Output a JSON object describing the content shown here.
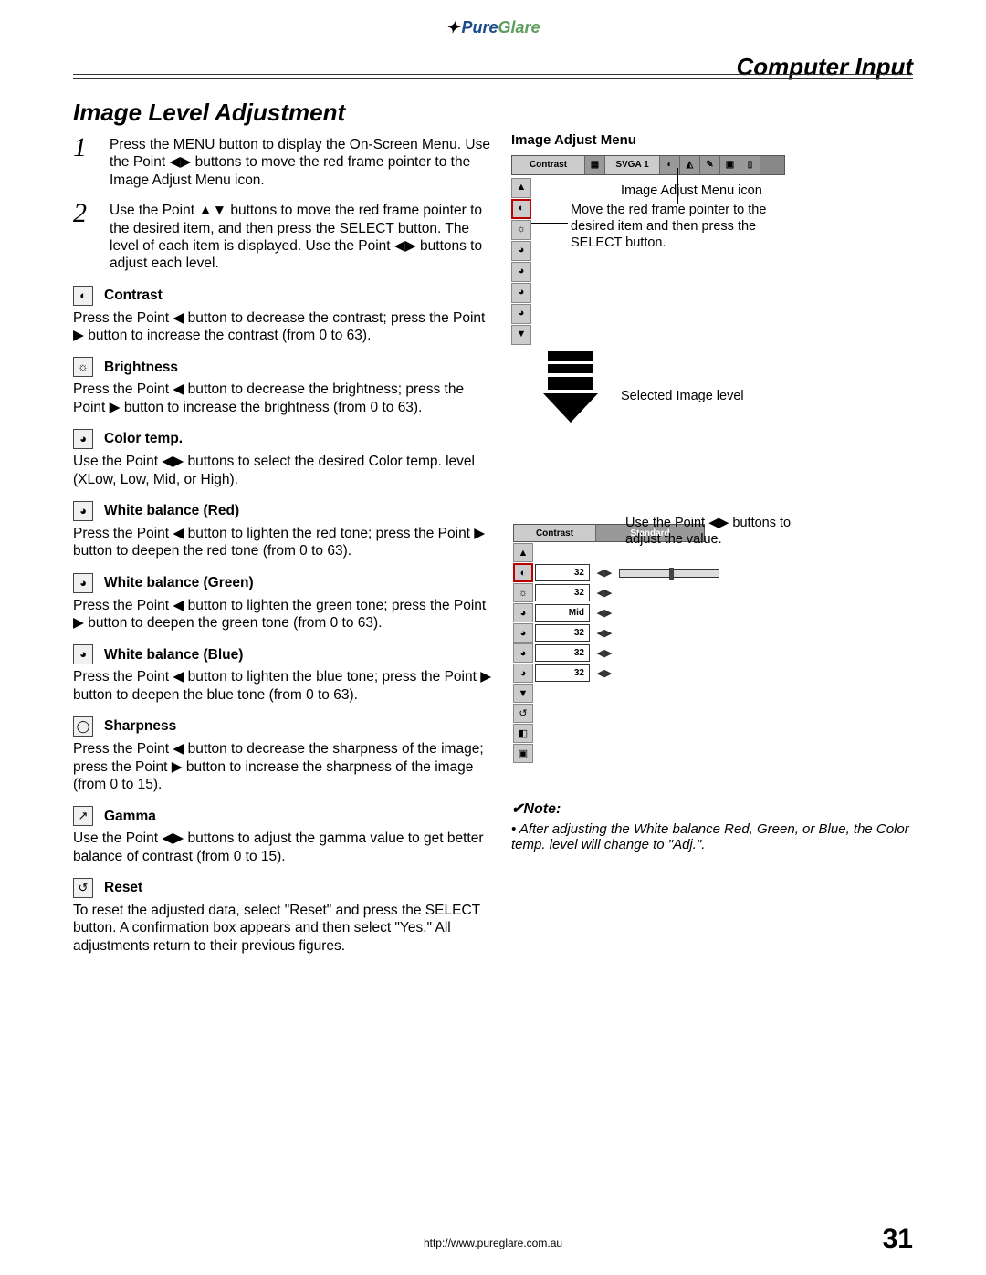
{
  "logo": {
    "pure": "Pure",
    "glare": "Glare"
  },
  "chapter": "Computer Input",
  "heading": "Image Level Adjustment",
  "steps": [
    {
      "num": "1",
      "text": "Press the MENU button to display the On-Screen Menu. Use the Point ◀▶ buttons to move the red frame pointer to the Image Adjust Menu icon."
    },
    {
      "num": "2",
      "text": "Use the Point ▲▼ buttons to move the red frame pointer to the desired item, and then press the SELECT button. The level of each item is displayed. Use the Point ◀▶ buttons to adjust each level."
    }
  ],
  "adjustments": [
    {
      "icon": "◐",
      "title": "Contrast",
      "body": "Press the Point ◀ button to decrease the contrast; press the Point ▶ button to increase the contrast (from 0 to 63)."
    },
    {
      "icon": "☼",
      "title": "Brightness",
      "body": "Press the Point ◀ button to decrease the brightness; press the Point ▶ button to increase the brightness (from 0 to 63)."
    },
    {
      "icon": "◕",
      "title": "Color temp.",
      "body": "Use the Point ◀▶ buttons to select the desired Color temp. level (XLow, Low, Mid, or High)."
    },
    {
      "icon": "◕",
      "title": "White balance (Red)",
      "body": "Press the Point ◀ button to lighten the red tone; press the Point ▶ button to deepen the red tone (from 0 to 63)."
    },
    {
      "icon": "◕",
      "title": "White balance (Green)",
      "body": "Press the Point ◀ button to lighten the green tone; press the Point ▶ button to deepen the green tone (from 0 to 63)."
    },
    {
      "icon": "◕",
      "title": "White balance (Blue)",
      "body": "Press the Point ◀ button to lighten the blue tone; press the Point ▶ button to deepen the blue tone (from 0 to 63)."
    },
    {
      "icon": "◯",
      "title": "Sharpness",
      "body": "Press the Point ◀ button to decrease the sharpness of the image; press the Point ▶ button to increase the sharpness of the image (from 0 to 15)."
    },
    {
      "icon": "↗",
      "title": "Gamma",
      "body": "Use the Point ◀▶ buttons to adjust the gamma value to get better balance of contrast (from 0 to 15)."
    },
    {
      "icon": "↺",
      "title": "Reset",
      "body": "To reset the adjusted data, select \"Reset\" and press the SELECT button. A confirmation box appears and then select \"Yes.\" All adjustments return to their previous figures."
    }
  ],
  "right": {
    "menu_title": "Image Adjust Menu",
    "osd_bar": {
      "label": "Contrast",
      "mode": "SVGA 1"
    },
    "annot1": "Image Adjust Menu icon",
    "annot2": "Move the red frame pointer to the desired item and then press the SELECT button.",
    "annot3": "Selected Image level",
    "annot4": "Use the Point ◀▶ buttons to adjust the value.",
    "osd2": {
      "bar_label": "Contrast",
      "bar_mode": "Standard",
      "rows": [
        {
          "icon": "▲",
          "val": ""
        },
        {
          "icon": "◐",
          "val": "32",
          "selected": true,
          "slider": true
        },
        {
          "icon": "☼",
          "val": "32"
        },
        {
          "icon": "◕",
          "val": "Mid"
        },
        {
          "icon": "◕",
          "val": "32"
        },
        {
          "icon": "◕",
          "val": "32"
        },
        {
          "icon": "◕",
          "val": "32"
        },
        {
          "icon": "▼",
          "val": ""
        },
        {
          "icon": "↺",
          "val": ""
        },
        {
          "icon": "◧",
          "val": ""
        },
        {
          "icon": "▣",
          "val": ""
        }
      ]
    },
    "note_head": "✔Note:",
    "note_body": "• After adjusting the White balance Red, Green, or Blue, the Color temp. level will change to \"Adj.\"."
  },
  "footer": {
    "url": "http://www.pureglare.com.au",
    "page": "31"
  }
}
